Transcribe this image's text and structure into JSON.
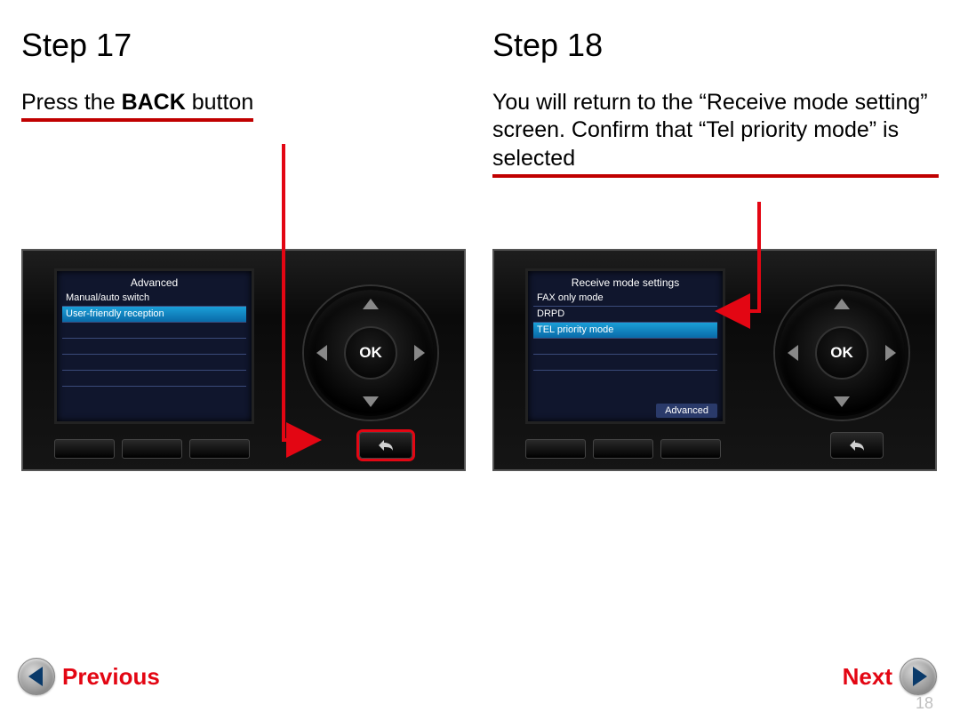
{
  "accent_color": "#c00000",
  "nav_label_color": "#e30613",
  "page_number": "18",
  "left": {
    "heading": "Step 17",
    "instruction_pre": "Press the ",
    "instruction_bold": "BACK",
    "instruction_post": " button",
    "lcd": {
      "title": "Advanced",
      "rows": [
        {
          "label": "Manual/auto switch",
          "selected": false
        },
        {
          "label": "User-friendly reception",
          "selected": true
        },
        {
          "label": "",
          "selected": false
        },
        {
          "label": "",
          "selected": false
        },
        {
          "label": "",
          "selected": false
        },
        {
          "label": "",
          "selected": false
        }
      ]
    },
    "ok_label": "OK",
    "back_highlight": true
  },
  "right": {
    "heading": "Step 18",
    "instruction_text": "You will return to the “Receive mode setting” screen. Confirm that “Tel priority mode” is selected",
    "lcd": {
      "title": "Receive mode settings",
      "rows": [
        {
          "label": "FAX only mode",
          "selected": false
        },
        {
          "label": "DRPD",
          "selected": false
        },
        {
          "label": "TEL priority mode",
          "selected": true
        },
        {
          "label": "",
          "selected": false
        },
        {
          "label": "",
          "selected": false
        }
      ],
      "softkey": "Advanced"
    },
    "ok_label": "OK",
    "back_highlight": false
  },
  "nav": {
    "prev": "Previous",
    "next": "Next"
  }
}
